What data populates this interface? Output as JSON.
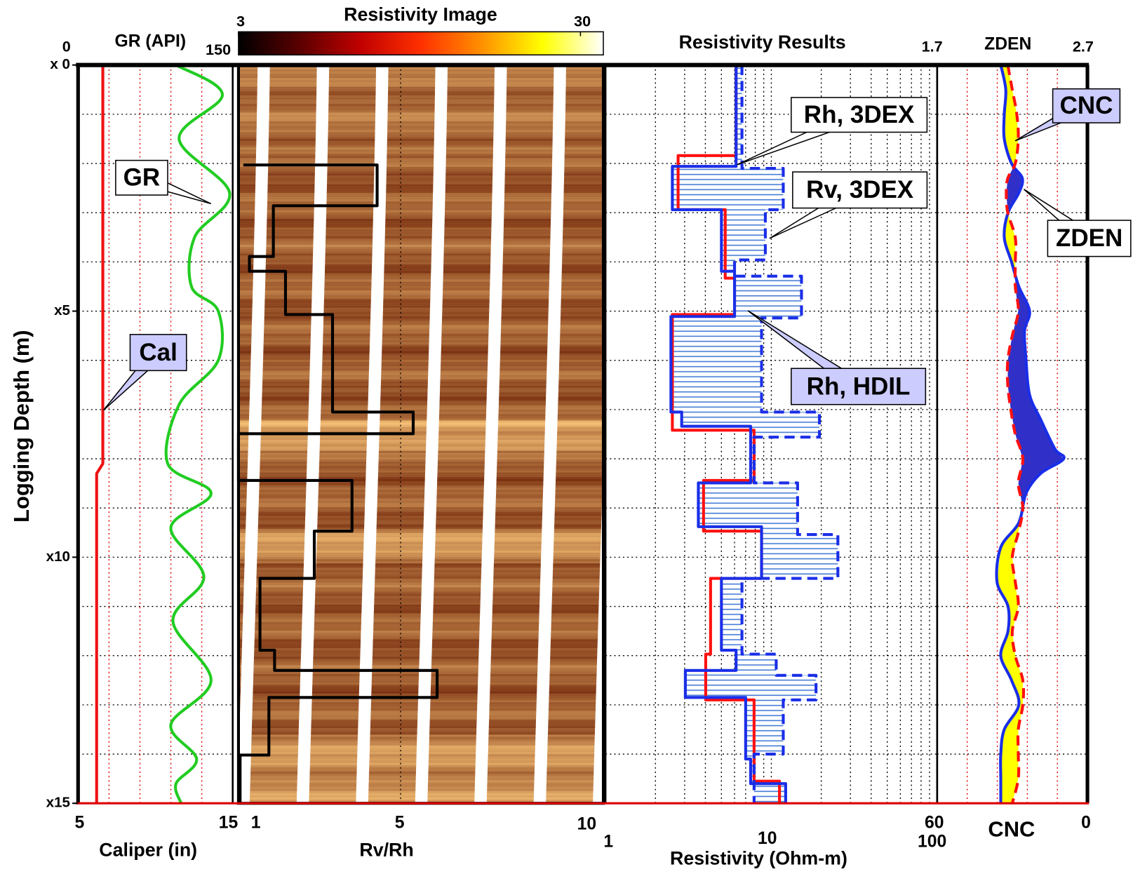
{
  "chart_data": [
    {
      "type": "line",
      "xlabel": "Caliper (in)",
      "xlim": [
        5,
        15
      ],
      "xticks": [
        5,
        15
      ],
      "x2label": "GR (API)",
      "x2lim": [
        0,
        150
      ],
      "x2ticks": [
        0,
        150
      ],
      "x2grid": [
        30,
        60,
        90,
        120
      ],
      "ylabel": "Logging Depth (m)",
      "ylim": [
        0,
        15
      ],
      "yticks": [
        {
          "value": 0,
          "label": "x 0"
        },
        {
          "value": 5,
          "label": "x5"
        },
        {
          "value": 10,
          "label": "x10"
        },
        {
          "value": 15,
          "label": "x15"
        }
      ],
      "ygrid": [
        1,
        2,
        3,
        4,
        6,
        7,
        8,
        9,
        11,
        12,
        13,
        14
      ],
      "grid_color": "#dd0000",
      "series": [
        {
          "name": "Cal",
          "color": "#ee1111",
          "axis": "x",
          "depth": [
            0,
            8.1,
            8.3,
            15
          ],
          "values": [
            6.6,
            6.6,
            6.2,
            6.2
          ]
        },
        {
          "name": "GR",
          "color": "#22cc22",
          "axis": "x2",
          "smooth": true,
          "depth": [
            0,
            0.6,
            1.5,
            2.6,
            3.5,
            4.5,
            5,
            6,
            6.9,
            8.1,
            8.7,
            9.4,
            10.4,
            11.3,
            12.5,
            13.4,
            14.1,
            14.6,
            15
          ],
          "values": [
            95,
            140,
            98,
            147,
            113,
            110,
            136,
            136,
            98,
            87,
            129,
            90,
            122,
            92,
            129,
            90,
            115,
            95,
            100
          ]
        }
      ]
    },
    {
      "type": "image",
      "title": "Resistivity Image",
      "clim": [
        3,
        35
      ],
      "cticks": [
        3,
        30
      ],
      "clog": true,
      "colormap": [
        "#000000",
        "#5a0000",
        "#c00000",
        "#ff3000",
        "#ff9000",
        "#ffff00",
        "#ffffff"
      ],
      "xlabel": "Rv/Rh",
      "xlim": [
        1,
        10
      ],
      "xticks": [
        1,
        5,
        10
      ],
      "grid_color": "#000000",
      "series": [
        {
          "color": "#000000",
          "axis": "x",
          "depth": [
            2.03,
            2.03,
            2.86,
            2.86,
            3.89,
            3.89,
            4.19,
            4.19,
            5.07,
            5.07,
            7.05,
            7.05,
            7.49,
            7.49,
            8.44,
            8.44,
            9.47,
            9.47,
            10.43,
            10.43,
            11.89,
            11.89,
            12.3,
            12.3,
            12.85,
            12.85,
            14.02,
            14.02,
            15
          ],
          "values": [
            1.12,
            4.42,
            4.42,
            1.86,
            1.86,
            1.27,
            1.27,
            2.16,
            2.16,
            3.32,
            3.32,
            5.31,
            5.31,
            1.0,
            1.0,
            3.8,
            3.8,
            2.87,
            2.87,
            1.53,
            1.53,
            1.89,
            1.89,
            5.9,
            5.9,
            1.75,
            1.75,
            1.04,
            1.04
          ]
        }
      ]
    },
    {
      "type": "line",
      "title": "Resistivity Results",
      "xlabel": "Resistivity (Ohm-m)",
      "xlim": [
        1,
        100
      ],
      "xticks": [
        1,
        10,
        100
      ],
      "xscale": "log",
      "xgrid": [
        2,
        3,
        4,
        5,
        6,
        7,
        8,
        9,
        20,
        30,
        40,
        50,
        60,
        70,
        80,
        90
      ],
      "grid_color": "#000000",
      "fill_between": [
        1,
        2
      ],
      "fill_color": "#4a7fd8",
      "series": [
        {
          "name": "Rh, 3DEX",
          "color": "#ff1010",
          "axis": "x",
          "depth": [
            0,
            1.84,
            1.84,
            2.94,
            2.94,
            4.33,
            4.33,
            5.07,
            5.07,
            7.42,
            7.42,
            8.44,
            8.44,
            9.47,
            9.47,
            10.43,
            10.43,
            11.97,
            11.97,
            12.9,
            12.9,
            14.55,
            14.55,
            15
          ],
          "values": [
            6.13,
            6.13,
            2.74,
            2.74,
            5.27,
            5.27,
            6.0,
            6.0,
            2.53,
            2.53,
            7.87,
            7.87,
            3.9,
            3.9,
            8.73,
            8.73,
            4.3,
            4.3,
            4.02,
            4.02,
            7.87,
            7.87,
            11.2,
            11.2
          ]
        },
        {
          "name": "Rv, 3DEX",
          "color": "#1a2ee8",
          "axis": "x",
          "linestyle": "dashed",
          "depth": [
            0,
            2.1,
            2.1,
            2.94,
            2.94,
            3.96,
            3.96,
            4.29,
            4.29,
            5.14,
            5.14,
            7.05,
            7.05,
            7.56,
            7.56,
            8.49,
            8.49,
            9.54,
            9.54,
            10.43,
            10.43,
            11.97,
            11.97,
            12.4,
            12.4,
            12.9,
            12.9,
            14.0,
            14.0,
            15
          ],
          "values": [
            6.65,
            6.65,
            11.8,
            11.8,
            9.2,
            9.2,
            6.0,
            6.0,
            15.2,
            15.2,
            8.73,
            8.73,
            19.5,
            19.5,
            7.87,
            7.87,
            14.4,
            14.4,
            25.2,
            25.2,
            6.65,
            6.65,
            10.7,
            10.7,
            18.6,
            18.6,
            11.8,
            11.8,
            7.87,
            7.87
          ]
        },
        {
          "name": "Rh, HDIL",
          "color": "#1a2ee8",
          "axis": "x",
          "depth": [
            0,
            2.06,
            2.06,
            2.94,
            2.94,
            4.19,
            4.19,
            5.11,
            5.11,
            7.05,
            7.05,
            7.34,
            7.34,
            8.49,
            8.49,
            9.38,
            9.38,
            10.43,
            10.43,
            11.89,
            11.89,
            12.3,
            12.3,
            12.85,
            12.85,
            14.1,
            14.1,
            14.6,
            14.6,
            15
          ],
          "values": [
            6.13,
            6.13,
            2.53,
            2.53,
            5.0,
            5.0,
            6.0,
            6.0,
            2.48,
            2.48,
            2.88,
            2.88,
            7.5,
            7.5,
            3.63,
            3.63,
            8.73,
            8.73,
            5.0,
            5.0,
            6.13,
            6.13,
            3.03,
            3.03,
            7.0,
            7.0,
            7.5,
            7.5,
            12.2,
            12.2
          ]
        }
      ]
    },
    {
      "type": "line",
      "xlabel": "CNC",
      "xlim": [
        60,
        0
      ],
      "xticks": [
        60,
        0
      ],
      "x2label": "ZDEN",
      "x2lim": [
        1.7,
        2.7
      ],
      "x2ticks": [
        1.7,
        2.7
      ],
      "x2grid": [
        1.9,
        2.1,
        2.3,
        2.5
      ],
      "grid_color": "#dd0000",
      "fill_colors": [
        "#ffff00",
        "#3030c8"
      ],
      "series": [
        {
          "name": "CNC",
          "color": "#1a2ee8",
          "axis": "x",
          "smooth": true,
          "depth": [
            0,
            0.5,
            1,
            1.5,
            2,
            2.3,
            2.6,
            3,
            3.5,
            4,
            4.5,
            5,
            5.4,
            6,
            6.7,
            7.2,
            7.8,
            8,
            8.3,
            8.7,
            9.3,
            9.8,
            10.5,
            11,
            11.5,
            12,
            12.5,
            13,
            13.5,
            14,
            14.5,
            15
          ],
          "values": [
            34.6,
            32.6,
            33.2,
            33.2,
            30.3,
            26.0,
            27.4,
            31.7,
            33.2,
            30.3,
            27.4,
            23.1,
            25.1,
            24.5,
            23.1,
            18.7,
            13.0,
            9.5,
            18.7,
            24.5,
            27.4,
            34.6,
            36.1,
            31.7,
            31.7,
            34.6,
            30.3,
            27.4,
            33.2,
            34.6,
            34.6,
            34.6
          ]
        },
        {
          "name": "ZDEN",
          "color": "#ff1010",
          "axis": "x2",
          "linestyle": "dashed",
          "smooth": true,
          "depth": [
            0,
            0.5,
            1,
            1.5,
            2,
            2.3,
            2.6,
            3,
            3.5,
            4,
            4.5,
            5,
            5.5,
            6,
            6.5,
            7,
            7.5,
            8,
            8.5,
            9,
            9.5,
            10,
            10.5,
            11,
            11.5,
            12,
            12.5,
            13,
            13.5,
            14,
            14.5,
            15
          ],
          "values": [
            2.17,
            2.2,
            2.23,
            2.24,
            2.22,
            2.17,
            2.16,
            2.17,
            2.22,
            2.22,
            2.22,
            2.24,
            2.2,
            2.17,
            2.17,
            2.19,
            2.22,
            2.27,
            2.24,
            2.27,
            2.24,
            2.2,
            2.22,
            2.24,
            2.2,
            2.22,
            2.27,
            2.27,
            2.24,
            2.24,
            2.24,
            2.2
          ]
        }
      ]
    }
  ]
}
